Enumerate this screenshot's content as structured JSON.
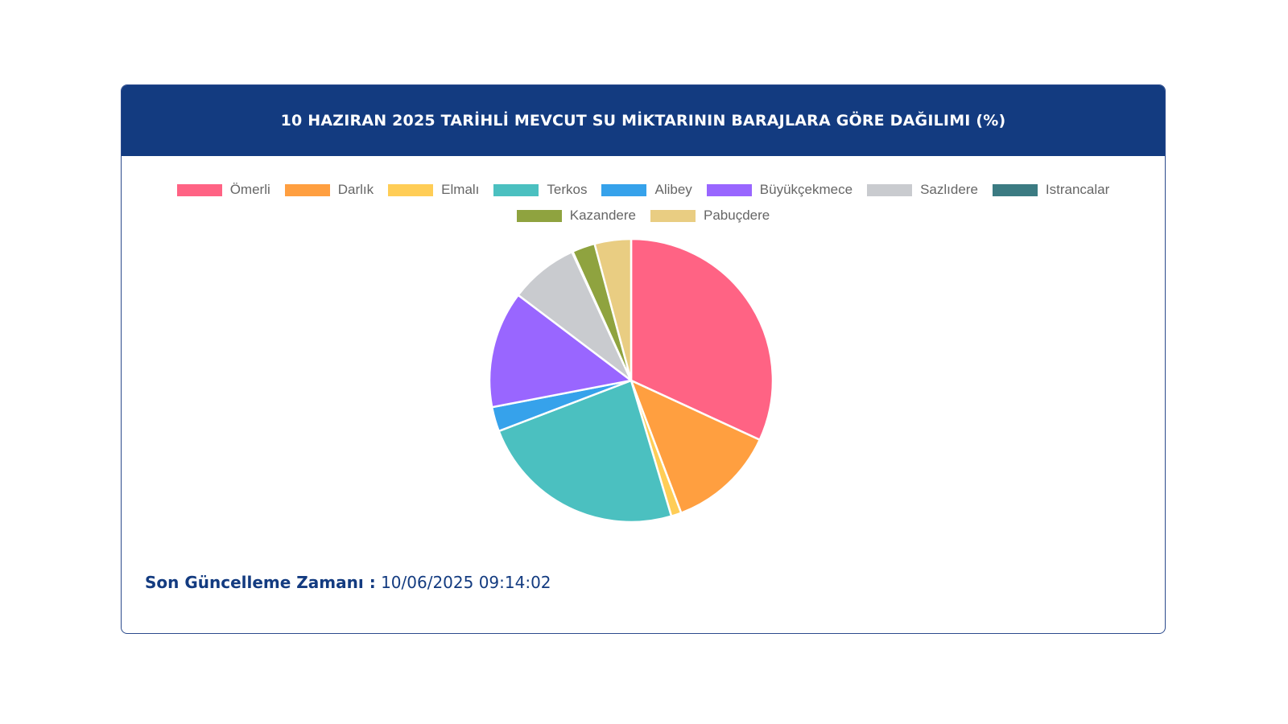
{
  "header": {
    "title": "10 HAZIRAN 2025 TARİHLİ MEVCUT SU MİKTARININ BARAJLARA GÖRE DAĞILIMI (%)"
  },
  "footer": {
    "label": "Son Güncelleme Zamanı :",
    "value": "10/06/2025 09:14:02"
  },
  "colors": {
    "header_bg": "#133b80",
    "border": "#2b4a8c"
  },
  "chart_data": {
    "type": "pie",
    "legend_position": "top",
    "categories": [
      "Ömerli",
      "Darlık",
      "Elmalı",
      "Terkos",
      "Alibey",
      "Büyükçekmece",
      "Sazlıdere",
      "Istrancalar",
      "Kazandere",
      "Pabuçdere"
    ],
    "values": [
      33.0,
      12.8,
      1.2,
      24.6,
      2.9,
      13.8,
      8.1,
      0.1,
      2.7,
      4.3
    ],
    "colors": [
      "#ff6384",
      "#ff9f40",
      "#ffcd56",
      "#4bc0c0",
      "#36a2eb",
      "#9966ff",
      "#c9cbcf",
      "#3b7b82",
      "#8fa33f",
      "#e9cd82"
    ]
  }
}
